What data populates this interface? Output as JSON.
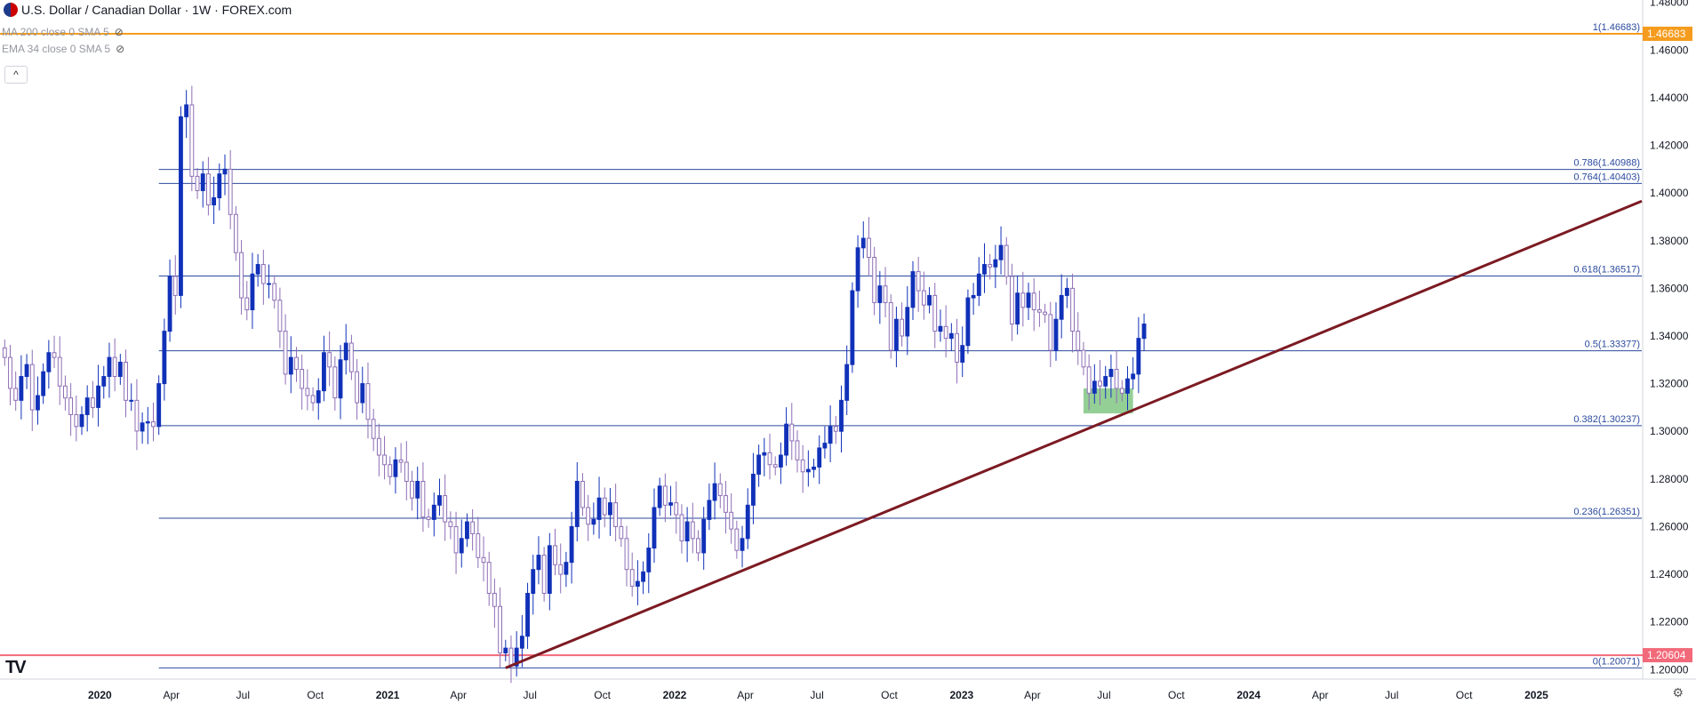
{
  "header": {
    "title": "U.S. Dollar / Canadian Dollar · 1W · FOREX.com",
    "indicators": [
      "MA 200 close 0 SMA 5",
      "EMA 34 close 0 SMA 5"
    ]
  },
  "icons": {
    "flag": "us-ca-flag-icon",
    "eye": "eye-hidden-icon",
    "collapse": "chevron-up-icon",
    "logo": "tradingview-logo",
    "settings": "gear-icon"
  },
  "colors": {
    "up": "#1031b8",
    "down": "#8e6eb5",
    "fib": "#2b4a9e",
    "trendline": "#7c1a22",
    "support_zone": "#4caf50",
    "high_line": "#f59b1d",
    "low_line": "#f26a7a",
    "axis_text": "#131722"
  },
  "chart_data": {
    "type": "candlestick",
    "symbol": "USD/CAD",
    "timeframe": "1W",
    "y_axis": {
      "ticks": [
        "1.20000",
        "1.22000",
        "1.24000",
        "1.26000",
        "1.28000",
        "1.30000",
        "1.32000",
        "1.34000",
        "1.36000",
        "1.38000",
        "1.40000",
        "1.42000",
        "1.44000",
        "1.46000",
        "1.48000"
      ],
      "range": [
        1.196,
        1.481
      ]
    },
    "x_axis": {
      "ticks": [
        "2020",
        "Apr",
        "Jul",
        "Oct",
        "2021",
        "Apr",
        "Jul",
        "Oct",
        "2022",
        "Apr",
        "Jul",
        "Oct",
        "2023",
        "Apr",
        "Jul",
        "Oct",
        "2024",
        "Apr",
        "Jul",
        "Oct",
        "2025"
      ],
      "range": [
        "2019-08-27",
        "2025-05-15"
      ]
    },
    "fibonacci": [
      {
        "label": "0(1.20071)",
        "level": 0,
        "price": 1.20071
      },
      {
        "label": "0.236(1.26351)",
        "level": 0.236,
        "price": 1.26351
      },
      {
        "label": "0.382(1.30237)",
        "level": 0.382,
        "price": 1.30237
      },
      {
        "label": "0.5(1.33377)",
        "level": 0.5,
        "price": 1.33377
      },
      {
        "label": "0.618(1.36517)",
        "level": 0.618,
        "price": 1.36517
      },
      {
        "label": "0.764(1.40403)",
        "level": 0.764,
        "price": 1.40403
      },
      {
        "label": "0.786(1.40988)",
        "level": 0.786,
        "price": 1.40988
      },
      {
        "label": "1(1.46683)",
        "level": 1,
        "price": 1.46683
      }
    ],
    "fib_start": "2020-03-16",
    "price_badges": [
      {
        "label": "1.46683",
        "price": 1.46683,
        "color": "#f59b1d"
      },
      {
        "label": "1.20604",
        "price": 1.20604,
        "color": "#f26a7a"
      }
    ],
    "trendline": {
      "start": {
        "date": "2021-05-31",
        "price": 1.2007
      },
      "end": {
        "date": "2025-05-15",
        "price": 1.3966
      }
    },
    "support_zone": {
      "start": "2023-06-05",
      "end": "2023-08-07",
      "top": 1.318,
      "bottom": 1.3075
    },
    "closes": [
      1.331,
      1.318,
      1.313,
      1.323,
      1.328,
      1.309,
      1.315,
      1.325,
      1.333,
      1.331,
      1.319,
      1.314,
      1.307,
      1.302,
      1.307,
      1.314,
      1.31,
      1.319,
      1.323,
      1.331,
      1.323,
      1.329,
      1.313,
      1.313,
      1.3001,
      1.3035,
      1.304,
      1.302,
      1.32,
      1.342,
      1.365,
      1.357,
      1.432,
      1.437,
      1.407,
      1.401,
      1.408,
      1.395,
      1.398,
      1.408,
      1.41,
      1.391,
      1.375,
      1.356,
      1.351,
      1.366,
      1.37,
      1.362,
      1.362,
      1.355,
      1.342,
      1.324,
      1.331,
      1.326,
      1.318,
      1.315,
      1.312,
      1.317,
      1.333,
      1.327,
      1.314,
      1.33,
      1.337,
      1.325,
      1.312,
      1.32,
      1.305,
      1.297,
      1.29,
      1.286,
      1.281,
      1.288,
      1.287,
      1.279,
      1.272,
      1.279,
      1.264,
      1.263,
      1.269,
      1.273,
      1.262,
      1.26,
      1.249,
      1.255,
      1.262,
      1.257,
      1.247,
      1.245,
      1.232,
      1.2265,
      1.207,
      1.209,
      1.2015,
      1.209,
      1.214,
      1.232,
      1.242,
      1.248,
      1.232,
      1.252,
      1.244,
      1.24,
      1.245,
      1.26,
      1.279,
      1.268,
      1.261,
      1.263,
      1.272,
      1.265,
      1.27,
      1.26,
      1.255,
      1.242,
      1.235,
      1.237,
      1.241,
      1.251,
      1.268,
      1.277,
      1.269,
      1.27,
      1.265,
      1.254,
      1.262,
      1.255,
      1.249,
      1.263,
      1.271,
      1.278,
      1.273,
      1.266,
      1.259,
      1.25,
      1.255,
      1.269,
      1.282,
      1.29,
      1.291,
      1.286,
      1.285,
      1.29,
      1.303,
      1.296,
      1.288,
      1.283,
      1.284,
      1.285,
      1.293,
      1.295,
      1.302,
      1.3,
      1.313,
      1.328,
      1.359,
      1.377,
      1.381,
      1.373,
      1.354,
      1.361,
      1.354,
      1.334,
      1.347,
      1.34,
      1.352,
      1.367,
      1.359,
      1.353,
      1.357,
      1.342,
      1.344,
      1.339,
      1.341,
      1.329,
      1.336,
      1.356,
      1.357,
      1.366,
      1.37,
      1.369,
      1.372,
      1.378,
      1.365,
      1.345,
      1.358,
      1.352,
      1.358,
      1.351,
      1.35,
      1.349,
      1.334,
      1.347,
      1.357,
      1.36,
      1.342,
      1.334,
      1.327,
      1.316,
      1.321,
      1.319,
      1.323,
      1.326,
      1.318,
      1.316,
      1.322,
      1.324,
      1.339,
      1.345
    ],
    "first_week": "2019-09-02"
  }
}
